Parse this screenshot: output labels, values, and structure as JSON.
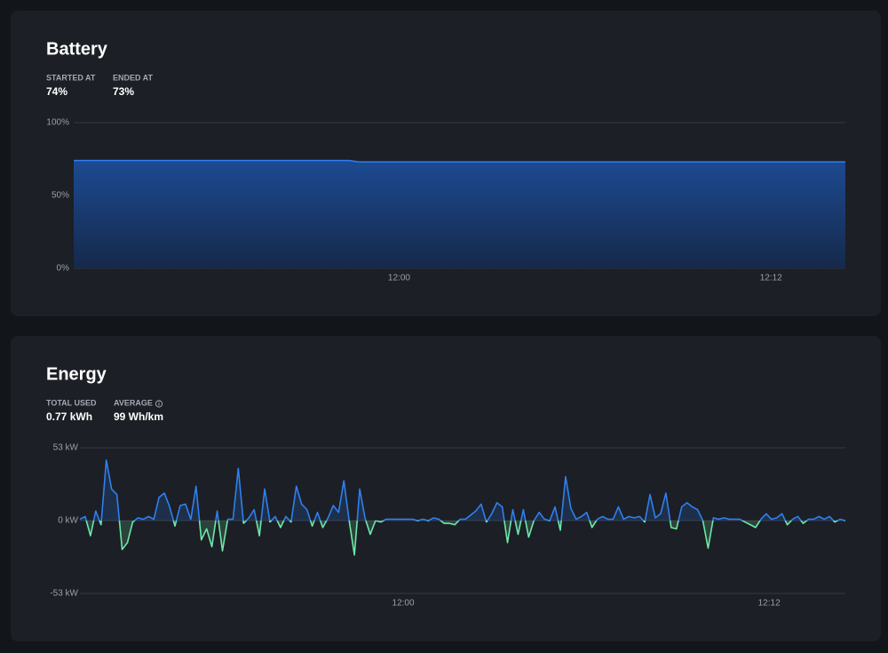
{
  "chart_data": [
    {
      "type": "area",
      "title": "Battery",
      "stats": [
        {
          "label": "STARTED AT",
          "value": "74%"
        },
        {
          "label": "ENDED AT",
          "value": "73%"
        }
      ],
      "series": [
        {
          "color": "#2f7ff0",
          "x": [
            709.5,
            718.4,
            718.7,
            734.4
          ],
          "values": [
            74,
            74,
            73,
            73
          ]
        }
      ],
      "xlim": [
        709.5,
        734.4
      ],
      "xticks": [
        {
          "value": 720,
          "label": "12:00"
        },
        {
          "value": 732,
          "label": "12:12"
        }
      ],
      "ylim": [
        0,
        100
      ],
      "yticks": [
        {
          "value": 0,
          "label": "0%"
        },
        {
          "value": 50,
          "label": "50%"
        },
        {
          "value": 100,
          "label": "100%"
        }
      ],
      "grid": true
    },
    {
      "type": "line",
      "title": "Energy",
      "stats": [
        {
          "label": "TOTAL USED",
          "value": "0.77 kWh"
        },
        {
          "label": "AVERAGE",
          "value": "99 Wh/km"
        }
      ],
      "series": [
        {
          "color": "#2f7ff0",
          "negative_color": "#6ee7a8",
          "values": [
            1,
            3,
            -11,
            7,
            -3,
            44,
            23,
            19,
            -21,
            -16,
            -1,
            2,
            1,
            3,
            1,
            17,
            20,
            10,
            -4,
            11,
            12,
            1,
            25,
            -14,
            -6,
            -19,
            7,
            -22,
            1,
            1,
            38,
            -2,
            2,
            8,
            -11,
            23,
            -1,
            3,
            -5,
            3,
            -1,
            25,
            12,
            8,
            -4,
            6,
            -5,
            2,
            11,
            6,
            29,
            0,
            -25,
            23,
            2,
            -10,
            0,
            -1,
            1,
            1,
            1,
            1,
            1,
            1,
            0,
            1,
            0,
            2,
            1,
            -2,
            -2,
            -3,
            1,
            1,
            4,
            7,
            12,
            -1,
            5,
            13,
            10,
            -16,
            8,
            -10,
            8,
            -12,
            0,
            6,
            1,
            0,
            10,
            -7,
            32,
            9,
            1,
            3,
            6,
            -5,
            1,
            3,
            1,
            1,
            10,
            1,
            3,
            2,
            3,
            -1,
            19,
            2,
            5,
            20,
            -5,
            -6,
            10,
            13,
            10,
            8,
            0,
            -20,
            2,
            1,
            2,
            1,
            1,
            1,
            -1,
            -3,
            -5,
            1,
            5,
            1,
            2,
            5,
            -3,
            1,
            3,
            -2,
            1,
            1,
            3,
            1,
            3,
            -1,
            1,
            0
          ]
        }
      ],
      "xlim": [
        709.4,
        734.5
      ],
      "xticks": [
        {
          "value": 720,
          "label": "12:00"
        },
        {
          "value": 732,
          "label": "12:12"
        }
      ],
      "ylim": [
        -53,
        53
      ],
      "yticks": [
        {
          "value": -53,
          "label": "-53 kW"
        },
        {
          "value": 0,
          "label": "0 kW"
        },
        {
          "value": 53,
          "label": "53 kW"
        }
      ],
      "grid": true
    }
  ]
}
